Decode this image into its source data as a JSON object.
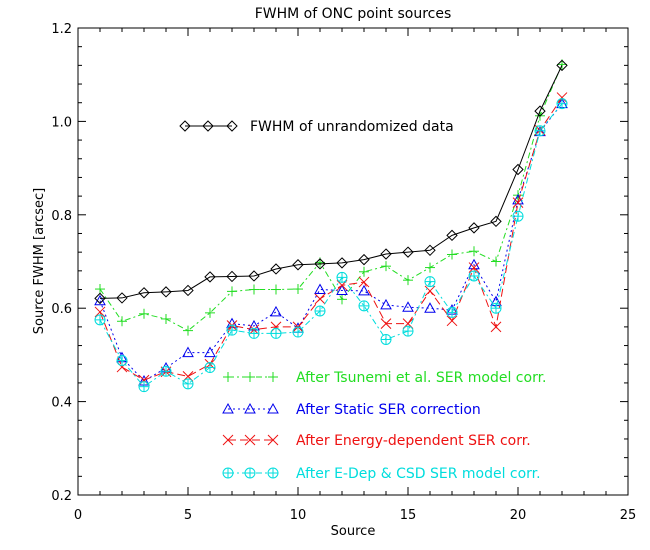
{
  "chart_data": {
    "type": "line",
    "title": "FWHM of ONC point sources",
    "xlabel": "Source",
    "ylabel": "Source FWHM [arcsec]",
    "xlim": [
      0,
      25
    ],
    "ylim": [
      0.2,
      1.2
    ],
    "xticks": [
      0,
      5,
      10,
      15,
      20,
      25
    ],
    "yticks": [
      0.2,
      0.4,
      0.6,
      0.8,
      1.0,
      1.2
    ],
    "ytick_labels": [
      "0.2",
      "0.4",
      "0.6",
      "0.8",
      "1.0",
      "1.2"
    ],
    "grid": false,
    "x": [
      1,
      2,
      3,
      4,
      5,
      6,
      7,
      8,
      9,
      10,
      11,
      12,
      13,
      14,
      15,
      16,
      17,
      18,
      19,
      20,
      21,
      22
    ],
    "series": [
      {
        "name": "FWHM of unrandomized data",
        "color": "#000000",
        "marker": "diamond",
        "dash": "",
        "values": [
          0.621,
          0.622,
          0.633,
          0.635,
          0.638,
          0.667,
          0.668,
          0.669,
          0.684,
          0.693,
          0.695,
          0.697,
          0.704,
          0.716,
          0.72,
          0.724,
          0.756,
          0.772,
          0.786,
          0.897,
          1.022,
          1.12
        ]
      },
      {
        "name": "After Tsunemi et al. SER model corr.",
        "color": "#22dd22",
        "marker": "plus",
        "dash": "6,3,2,3",
        "values": [
          0.641,
          0.572,
          0.588,
          0.577,
          0.552,
          0.59,
          0.636,
          0.64,
          0.64,
          0.641,
          0.698,
          0.619,
          0.678,
          0.69,
          0.66,
          0.687,
          0.715,
          0.722,
          0.7,
          0.842,
          1.012,
          1.122
        ]
      },
      {
        "name": "After Static SER correction",
        "color": "#0000ee",
        "marker": "triangle",
        "dash": "2,3",
        "values": [
          0.616,
          0.494,
          0.444,
          0.472,
          0.505,
          0.505,
          0.567,
          0.562,
          0.592,
          0.557,
          0.64,
          0.638,
          0.637,
          0.607,
          0.602,
          0.6,
          0.596,
          0.693,
          0.614,
          0.832,
          0.978,
          1.038
        ]
      },
      {
        "name": "After Energy-dependent SER corr.",
        "color": "#ee1111",
        "marker": "x",
        "dash": "8,4",
        "values": [
          0.592,
          0.474,
          0.446,
          0.464,
          0.454,
          0.48,
          0.563,
          0.554,
          0.56,
          0.56,
          0.62,
          0.649,
          0.656,
          0.567,
          0.567,
          0.637,
          0.573,
          0.687,
          0.56,
          0.826,
          0.981,
          1.051
        ]
      },
      {
        "name": "After E-Dep & CSD SER model corr.",
        "color": "#00dddd",
        "marker": "circleplus",
        "dash": "6,3,2,3",
        "values": [
          0.575,
          0.488,
          0.432,
          0.465,
          0.438,
          0.473,
          0.553,
          0.546,
          0.546,
          0.549,
          0.594,
          0.666,
          0.605,
          0.533,
          0.551,
          0.657,
          0.591,
          0.669,
          0.6,
          0.797,
          0.98,
          1.038
        ]
      }
    ],
    "legend_top": {
      "text": "FWHM of unrandomized data",
      "color": "#000000"
    },
    "legend_bottom": [
      {
        "text": "After Tsunemi et al. SER model corr.",
        "color": "#22dd22"
      },
      {
        "text": "After Static SER correction",
        "color": "#0000ee"
      },
      {
        "text": "After Energy-dependent SER corr.",
        "color": "#ee1111"
      },
      {
        "text": "After E-Dep & CSD SER model corr.",
        "color": "#00dddd"
      }
    ]
  }
}
